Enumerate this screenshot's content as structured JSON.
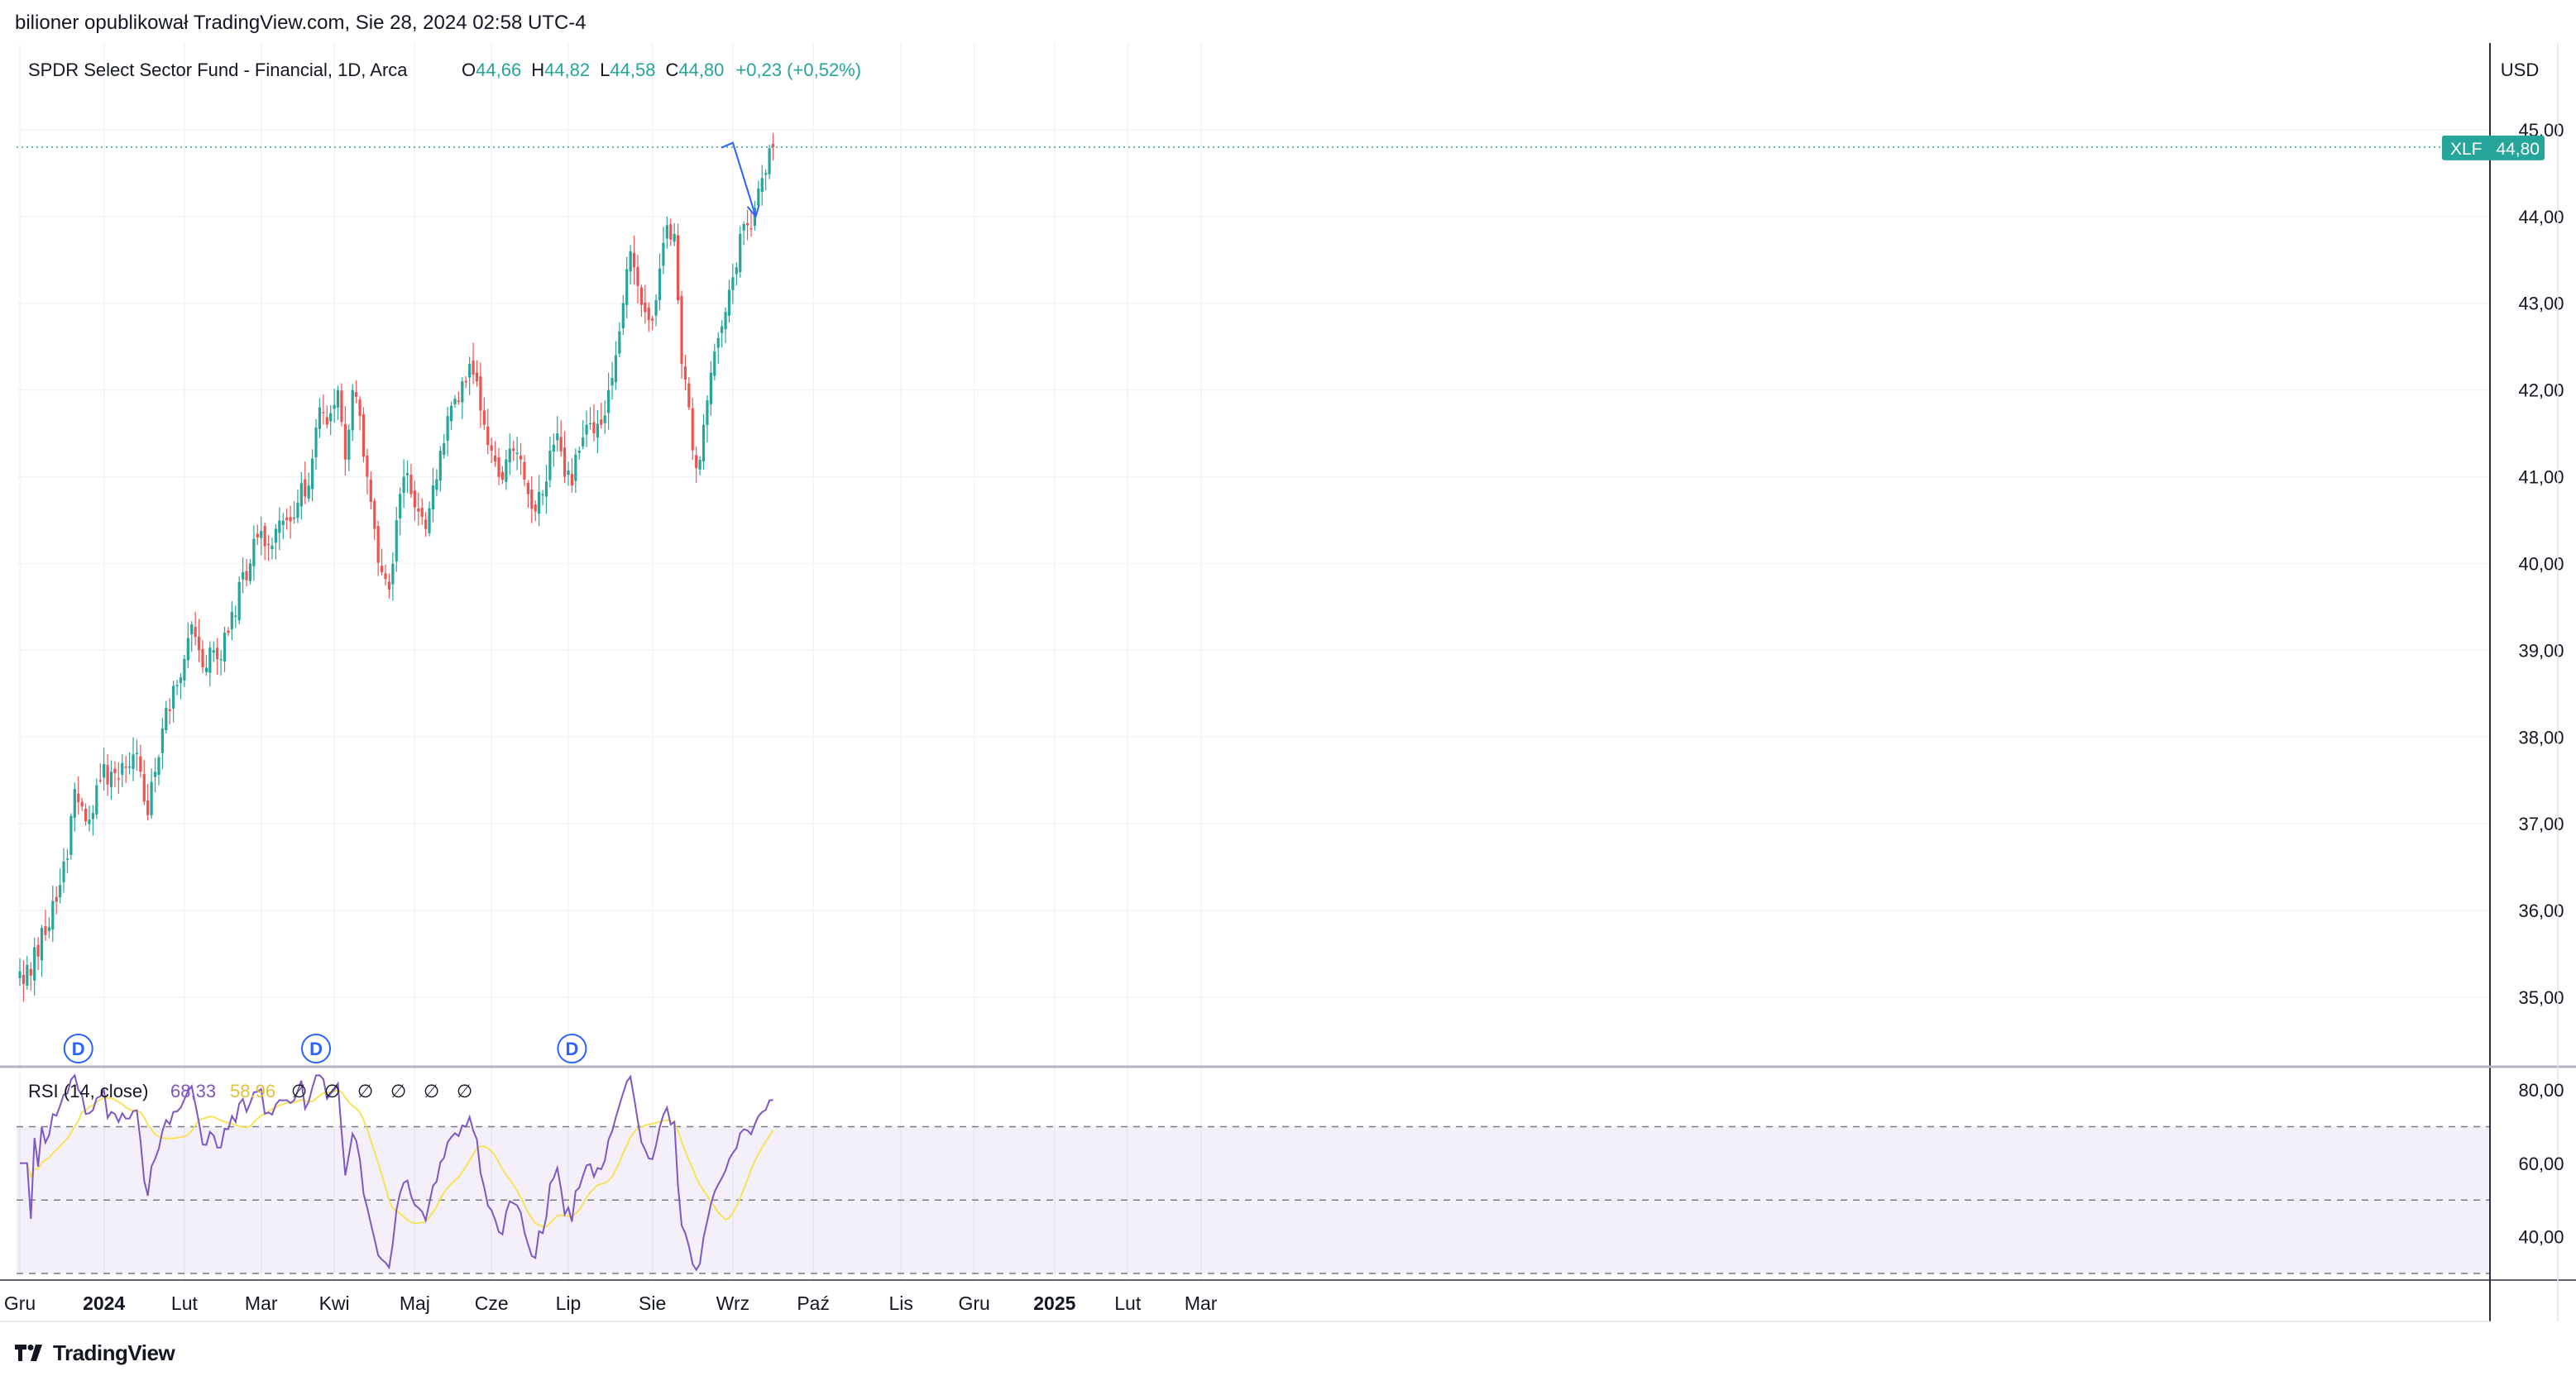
{
  "header": {
    "published_line": "bilioner opublikował TradingView.com, Sie 28, 2024 02:58 UTC-4"
  },
  "legend": {
    "symbol_title": "SPDR Select Sector Fund - Financial, 1D, Arca",
    "open_label": "O",
    "open_value": "44,66",
    "high_label": "H",
    "high_value": "44,82",
    "low_label": "L",
    "low_value": "44,58",
    "close_label": "C",
    "close_value": "44,80",
    "change": "+0,23 (+0,52%)"
  },
  "currency_label": "USD",
  "price_tag": {
    "ticker": "XLF",
    "value": "44,80"
  },
  "rsi_legend": {
    "title": "RSI (14, close)",
    "value": "68,33",
    "ma_value": "58,96",
    "na_symbols": [
      "∅",
      "∅",
      "∅",
      "∅",
      "∅",
      "∅"
    ]
  },
  "dividend_markers": [
    {
      "label": "D",
      "date": "2023-12-18"
    },
    {
      "label": "D",
      "date": "2024-03-18"
    },
    {
      "label": "D",
      "date": "2024-06-24"
    }
  ],
  "footer": {
    "brand": "TradingView"
  },
  "colors": {
    "up": "#26a69a",
    "down": "#ef5350",
    "rsi_line": "#7e57c2",
    "rsi_ma": "#f7e35a",
    "accent_blue": "#2962ff",
    "price_tag_bg": "#26a69a",
    "rsi_band": "#7e57c2",
    "arrow": "#2962ff"
  },
  "chart_data": [
    {
      "type": "candlestick",
      "title": "SPDR Select Sector Fund - Financial, 1D, Arca",
      "y_ticks": [
        "35,00",
        "36,00",
        "37,00",
        "38,00",
        "39,00",
        "40,00",
        "41,00",
        "42,00",
        "43,00",
        "44,00",
        "45,00"
      ],
      "y_tick_values": [
        35,
        36,
        37,
        38,
        39,
        40,
        41,
        42,
        43,
        44,
        45
      ],
      "ylim": [
        34.2,
        46.0
      ],
      "x_ticks": [
        "Gru",
        "2024",
        "Lut",
        "Mar",
        "Kwi",
        "Maj",
        "Cze",
        "Lip",
        "Sie",
        "Wrz",
        "Paź",
        "Lis",
        "Gru",
        "2025",
        "Lut",
        "Mar"
      ],
      "x_tick_index": [
        0,
        23,
        45,
        66,
        86,
        108,
        129,
        150,
        173,
        195,
        217,
        241,
        261,
        283,
        303,
        323
      ],
      "x_start": "2023-11-24",
      "last_price": 44.8,
      "grid": true,
      "annotation": {
        "type": "arrow",
        "description": "projected down arrow",
        "from_index": 195,
        "from": 44.85,
        "to_index": 199,
        "to": 44.0
      },
      "knots": [
        [
          0,
          35.3
        ],
        [
          3,
          35.25
        ],
        [
          6,
          35.8
        ],
        [
          10,
          36.1
        ],
        [
          13,
          36.6
        ],
        [
          15,
          37.4
        ],
        [
          17,
          37.2
        ],
        [
          19,
          37.05
        ],
        [
          22,
          37.5
        ],
        [
          25,
          37.6
        ],
        [
          28,
          37.7
        ],
        [
          31,
          37.8
        ],
        [
          33,
          37.6
        ],
        [
          35,
          37.1
        ],
        [
          37,
          37.6
        ],
        [
          39,
          38.1
        ],
        [
          41,
          38.3
        ],
        [
          43,
          38.6
        ],
        [
          45,
          38.9
        ],
        [
          47,
          39.3
        ],
        [
          49,
          39.0
        ],
        [
          51,
          38.8
        ],
        [
          53,
          39.0
        ],
        [
          55,
          38.9
        ],
        [
          57,
          39.2
        ],
        [
          59,
          39.4
        ],
        [
          61,
          39.9
        ],
        [
          63,
          40.0
        ],
        [
          65,
          40.3
        ],
        [
          67,
          40.2
        ],
        [
          70,
          40.4
        ],
        [
          73,
          40.5
        ],
        [
          76,
          40.7
        ],
        [
          79,
          40.9
        ],
        [
          82,
          41.8
        ],
        [
          84,
          41.6
        ],
        [
          87,
          42.0
        ],
        [
          89,
          41.2
        ],
        [
          91,
          42.0
        ],
        [
          93,
          41.7
        ],
        [
          95,
          41.0
        ],
        [
          97,
          40.4
        ],
        [
          99,
          39.9
        ],
        [
          101,
          39.7
        ],
        [
          103,
          40.5
        ],
        [
          105,
          41.0
        ],
        [
          107,
          40.8
        ],
        [
          109,
          40.6
        ],
        [
          111,
          40.4
        ],
        [
          113,
          40.9
        ],
        [
          115,
          41.3
        ],
        [
          117,
          41.7
        ],
        [
          119,
          41.9
        ],
        [
          121,
          42.1
        ],
        [
          123,
          42.3
        ],
        [
          125,
          42.1
        ],
        [
          127,
          41.6
        ],
        [
          129,
          41.3
        ],
        [
          131,
          41.0
        ],
        [
          133,
          41.2
        ],
        [
          135,
          41.3
        ],
        [
          137,
          41.2
        ],
        [
          139,
          40.8
        ],
        [
          141,
          40.6
        ],
        [
          143,
          40.8
        ],
        [
          145,
          41.3
        ],
        [
          147,
          41.5
        ],
        [
          149,
          41.0
        ],
        [
          151,
          40.9
        ],
        [
          153,
          41.3
        ],
        [
          155,
          41.6
        ],
        [
          157,
          41.5
        ],
        [
          159,
          41.6
        ],
        [
          161,
          42.0
        ],
        [
          163,
          42.4
        ],
        [
          165,
          43.0
        ],
        [
          167,
          43.6
        ],
        [
          169,
          43.2
        ],
        [
          171,
          42.9
        ],
        [
          173,
          42.8
        ],
        [
          175,
          43.4
        ],
        [
          177,
          43.9
        ],
        [
          179,
          43.8
        ],
        [
          181,
          42.3
        ],
        [
          183,
          41.8
        ],
        [
          185,
          41.1
        ],
        [
          187,
          41.6
        ],
        [
          189,
          42.2
        ],
        [
          191,
          42.6
        ],
        [
          193,
          42.9
        ],
        [
          195,
          43.3
        ],
        [
          197,
          43.8
        ],
        [
          199,
          43.9
        ],
        [
          201,
          44.1
        ],
        [
          204,
          44.5
        ],
        [
          206,
          44.8
        ]
      ]
    },
    {
      "type": "line",
      "title": "RSI (14, close)",
      "series": [
        {
          "name": "RSI",
          "values": [],
          "color": "#7e57c2"
        },
        {
          "name": "RSI-based MA",
          "values": [],
          "color": "#f7e35a"
        }
      ],
      "y_ticks": [
        "40,00",
        "60,00",
        "80,00"
      ],
      "y_tick_values": [
        40,
        60,
        80
      ],
      "ylim": [
        30,
        85
      ],
      "band": [
        30,
        70
      ],
      "midline": 50
    }
  ]
}
